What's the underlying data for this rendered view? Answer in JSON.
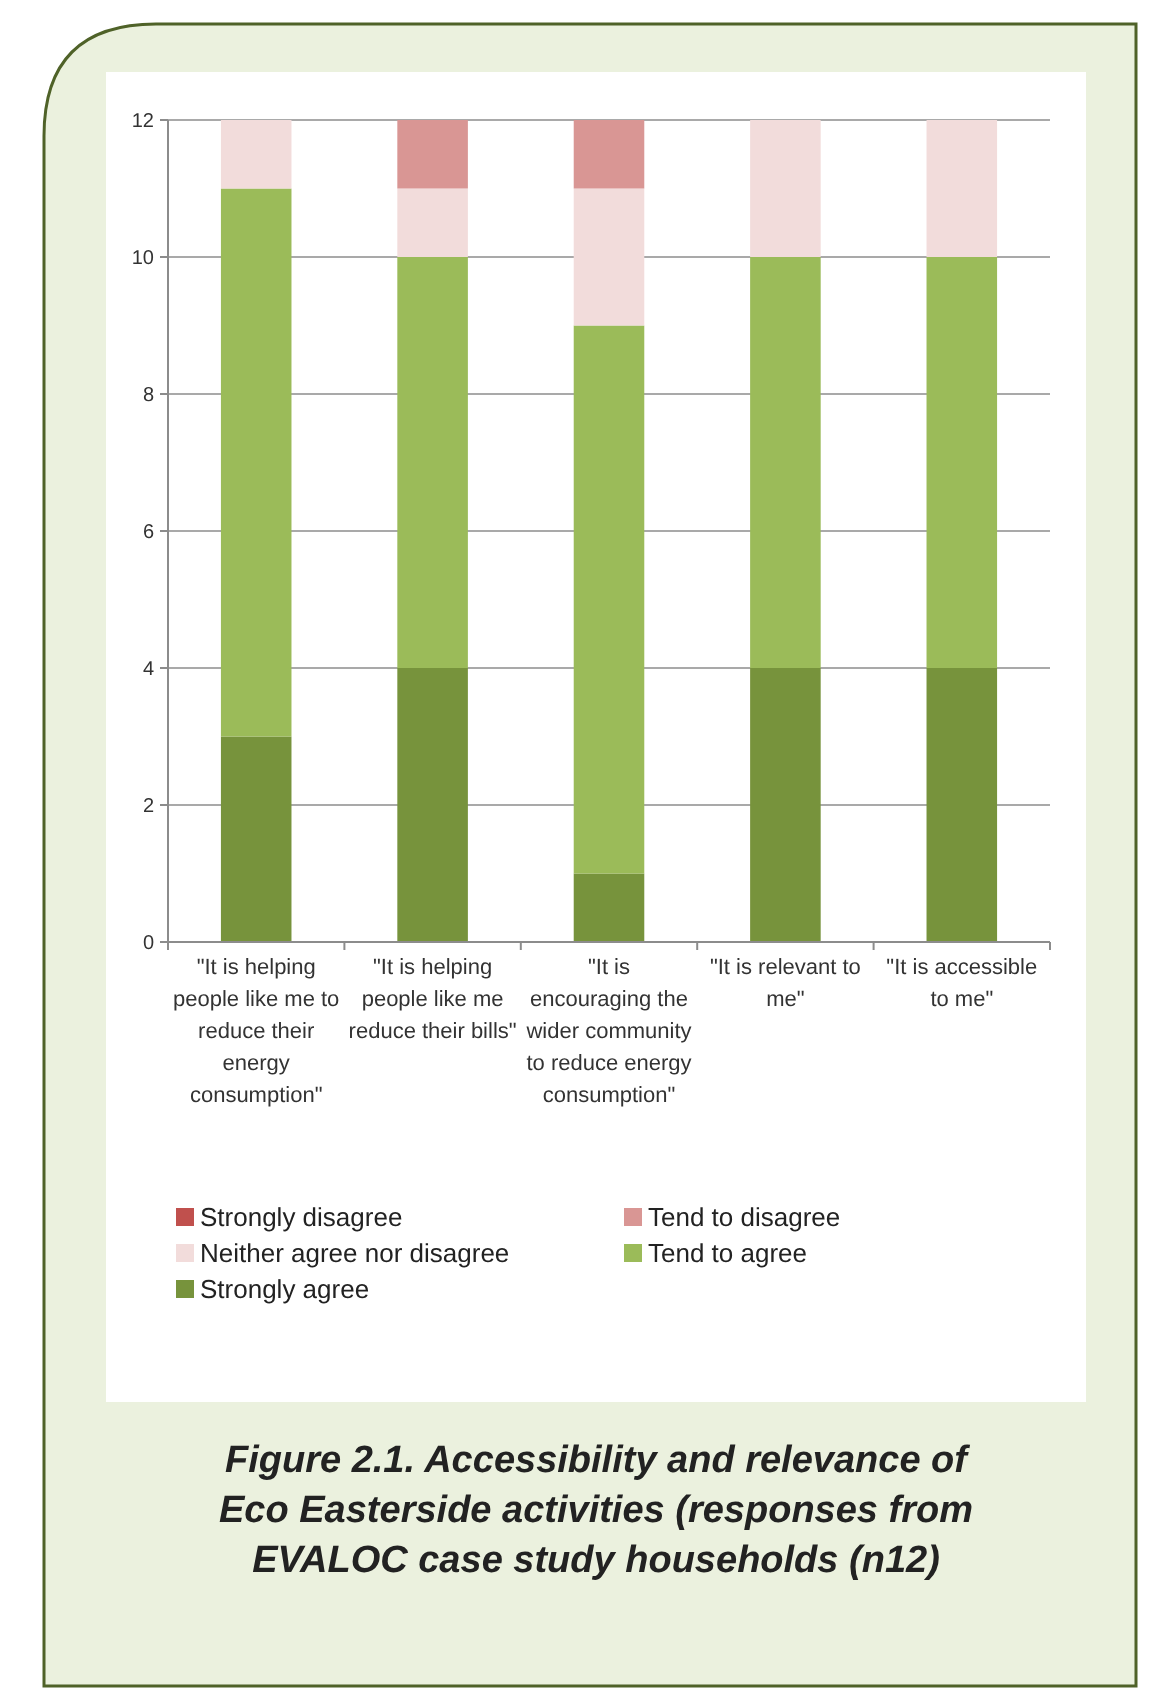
{
  "chart_data": {
    "type": "bar",
    "stacked": true,
    "title": "Figure 2.1. Accessibility and relevance of Eco Easterside activities (responses from EVALOC case study households (n12)",
    "categories": [
      "\"It is helping people like me to reduce their energy consumption\"",
      "\"It is helping people like me reduce their bills\"",
      "\"It is encouraging the wider community to reduce energy consumption\"",
      "\"It is relevant to me\"",
      "\"It is accessible to me\""
    ],
    "series": [
      {
        "name": "Strongly agree",
        "color": "#77933c",
        "values": [
          3,
          4,
          1,
          4,
          4
        ]
      },
      {
        "name": "Tend to agree",
        "color": "#9bbb59",
        "values": [
          8,
          6,
          8,
          6,
          6
        ]
      },
      {
        "name": "Neither agree nor disagree",
        "color": "#f2dcdb",
        "values": [
          1,
          1,
          2,
          2,
          2
        ]
      },
      {
        "name": "Tend to disagree",
        "color": "#d99694",
        "values": [
          0,
          1,
          1,
          0,
          0
        ]
      },
      {
        "name": "Strongly disagree",
        "color": "#c0504d",
        "values": [
          0,
          0,
          0,
          0,
          0
        ]
      }
    ],
    "ylim": [
      0,
      12
    ],
    "yticks": [
      0,
      2,
      4,
      6,
      8,
      10,
      12
    ],
    "grid": "y",
    "legend": "bottom"
  }
}
